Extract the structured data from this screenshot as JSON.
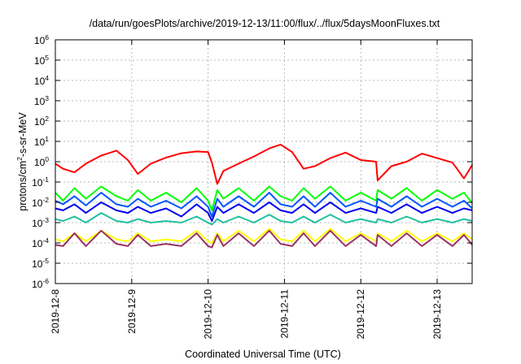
{
  "chart_data": {
    "type": "line",
    "title": "/data/run/goesPlots/archive/2019-12-13/11:00/flux/../flux/5daysMoonFluxes.txt",
    "xlabel": "Coordinated Universal Time (UTC)",
    "ylabel": "protons/cm2-s-sr-MeV",
    "yscale": "log",
    "ylim": [
      1e-06,
      1000000.0
    ],
    "xlim": [
      "2019-12-08",
      "2019-12-13T11:00"
    ],
    "grid": true,
    "legend": "none",
    "x_ticks": [
      "2019-12-8",
      "2019-12-9",
      "2019-12-10",
      "2019-12-11",
      "2019-12-12",
      "2019-12-13"
    ],
    "y_ticks": [
      {
        "base": "10",
        "exp": "6"
      },
      {
        "base": "10",
        "exp": "5"
      },
      {
        "base": "10",
        "exp": "4"
      },
      {
        "base": "10",
        "exp": "3"
      },
      {
        "base": "10",
        "exp": "2"
      },
      {
        "base": "10",
        "exp": "1"
      },
      {
        "base": "10",
        "exp": "0"
      },
      {
        "base": "10",
        "exp": "-1"
      },
      {
        "base": "10",
        "exp": "-2"
      },
      {
        "base": "10",
        "exp": "-3"
      },
      {
        "base": "10",
        "exp": "-4"
      },
      {
        "base": "10",
        "exp": "-5"
      },
      {
        "base": "10",
        "exp": "-6"
      }
    ],
    "x_days": [
      0,
      0.1,
      0.25,
      0.4,
      0.6,
      0.8,
      0.95,
      1.08,
      1.25,
      1.45,
      1.65,
      1.85,
      2.0,
      2.05,
      2.12,
      2.2,
      2.4,
      2.6,
      2.8,
      2.95,
      3.1,
      3.25,
      3.4,
      3.6,
      3.8,
      4.0,
      4.2,
      4.22,
      4.4,
      4.6,
      4.8,
      5.0,
      5.2,
      5.35,
      5.46
    ],
    "series": [
      {
        "color": "#ff0000",
        "values": [
          0.8,
          0.45,
          0.3,
          0.8,
          2.0,
          3.5,
          1.2,
          0.25,
          0.8,
          1.6,
          2.6,
          3.2,
          3.0,
          0.9,
          0.08,
          0.35,
          0.8,
          1.8,
          4.5,
          7.0,
          3.0,
          0.45,
          0.6,
          1.5,
          2.8,
          1.2,
          1.0,
          0.12,
          0.6,
          1.0,
          2.5,
          1.5,
          0.9,
          0.15,
          0.7
        ]
      },
      {
        "color": "#00ff00",
        "values": [
          0.03,
          0.012,
          0.05,
          0.015,
          0.06,
          0.02,
          0.012,
          0.04,
          0.012,
          0.03,
          0.01,
          0.05,
          0.012,
          0.004,
          0.04,
          0.015,
          0.05,
          0.012,
          0.06,
          0.02,
          0.012,
          0.05,
          0.015,
          0.06,
          0.012,
          0.03,
          0.012,
          0.04,
          0.015,
          0.05,
          0.012,
          0.04,
          0.015,
          0.03,
          0.009
        ]
      },
      {
        "color": "#0055ff",
        "values": [
          0.012,
          0.008,
          0.02,
          0.007,
          0.03,
          0.008,
          0.006,
          0.015,
          0.006,
          0.012,
          0.005,
          0.02,
          0.006,
          0.002,
          0.015,
          0.006,
          0.02,
          0.006,
          0.03,
          0.008,
          0.006,
          0.02,
          0.006,
          0.03,
          0.006,
          0.012,
          0.006,
          0.015,
          0.006,
          0.02,
          0.006,
          0.015,
          0.006,
          0.012,
          0.005
        ]
      },
      {
        "color": "#0000ee",
        "values": [
          0.005,
          0.004,
          0.008,
          0.003,
          0.01,
          0.004,
          0.003,
          0.006,
          0.003,
          0.005,
          0.002,
          0.008,
          0.003,
          0.0012,
          0.006,
          0.003,
          0.008,
          0.003,
          0.01,
          0.004,
          0.003,
          0.008,
          0.003,
          0.01,
          0.003,
          0.005,
          0.003,
          0.006,
          0.003,
          0.008,
          0.003,
          0.006,
          0.003,
          0.005,
          0.004
        ]
      },
      {
        "color": "#20c0a0",
        "values": [
          0.0015,
          0.0012,
          0.002,
          0.001,
          0.003,
          0.0012,
          0.001,
          0.0015,
          0.001,
          0.0012,
          0.001,
          0.002,
          0.001,
          0.0008,
          0.0015,
          0.001,
          0.002,
          0.001,
          0.0025,
          0.0012,
          0.001,
          0.002,
          0.001,
          0.0025,
          0.001,
          0.0015,
          0.001,
          0.0015,
          0.001,
          0.002,
          0.001,
          0.0015,
          0.001,
          0.0015,
          0.0012
        ]
      },
      {
        "color": "#ffff00",
        "values": [
          0.00015,
          0.00012,
          0.0003,
          0.00012,
          0.0004,
          0.00015,
          0.00012,
          0.0003,
          0.00012,
          0.00015,
          0.00012,
          0.0004,
          0.00012,
          0.0001,
          0.0003,
          0.00012,
          0.0004,
          0.00012,
          0.0005,
          0.00015,
          0.00012,
          0.0004,
          0.00012,
          0.0005,
          0.00012,
          0.0003,
          0.00012,
          0.0003,
          0.00012,
          0.0004,
          0.00012,
          0.0003,
          0.00012,
          0.0003,
          0.00015
        ]
      },
      {
        "color": "#993366",
        "values": [
          8e-05,
          7e-05,
          0.0003,
          7e-05,
          0.0004,
          9e-05,
          7e-05,
          0.00025,
          7e-05,
          9e-05,
          7e-05,
          0.0003,
          7e-05,
          6e-05,
          0.00025,
          7e-05,
          0.0003,
          7e-05,
          0.0004,
          9e-05,
          7e-05,
          0.0003,
          7e-05,
          0.0004,
          7e-05,
          0.00025,
          7e-05,
          0.00025,
          7e-05,
          0.0003,
          7e-05,
          0.00025,
          7e-05,
          0.00025,
          8e-05
        ]
      }
    ]
  }
}
